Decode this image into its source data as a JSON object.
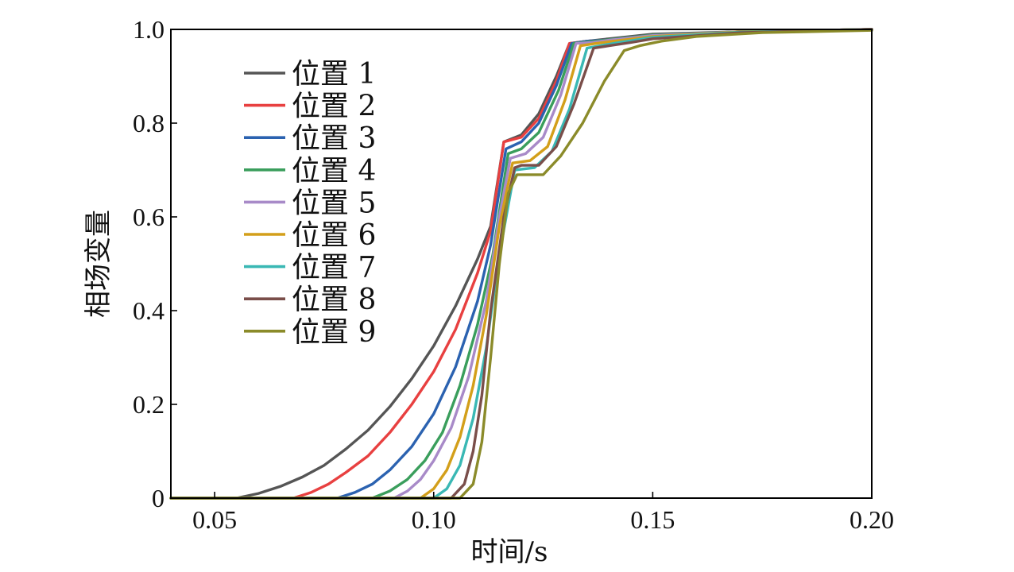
{
  "chart_data": {
    "type": "line",
    "title": "",
    "xlabel": "时间/s",
    "ylabel": "相场变量",
    "xlim": [
      0.04,
      0.2
    ],
    "ylim": [
      0,
      1.0
    ],
    "xticks": [
      0.05,
      0.1,
      0.15,
      0.2
    ],
    "xtick_labels": [
      "0.05",
      "0.10",
      "0.15",
      "0.20"
    ],
    "yticks": [
      0,
      0.2,
      0.4,
      0.6,
      0.8,
      1.0
    ],
    "ytick_labels": [
      "0",
      "0.2",
      "0.4",
      "0.6",
      "0.8",
      "1.0"
    ],
    "grid": false,
    "legend_position": "top-left",
    "series": [
      {
        "name": "位置 1",
        "color": "#555555",
        "points": [
          [
            0.04,
            0
          ],
          [
            0.055,
            0
          ],
          [
            0.06,
            0.01
          ],
          [
            0.065,
            0.025
          ],
          [
            0.07,
            0.045
          ],
          [
            0.075,
            0.07
          ],
          [
            0.08,
            0.105
          ],
          [
            0.085,
            0.145
          ],
          [
            0.09,
            0.195
          ],
          [
            0.095,
            0.255
          ],
          [
            0.1,
            0.325
          ],
          [
            0.105,
            0.41
          ],
          [
            0.11,
            0.51
          ],
          [
            0.113,
            0.58
          ],
          [
            0.116,
            0.76
          ],
          [
            0.12,
            0.775
          ],
          [
            0.124,
            0.82
          ],
          [
            0.128,
            0.9
          ],
          [
            0.131,
            0.97
          ],
          [
            0.135,
            0.975
          ],
          [
            0.14,
            0.98
          ],
          [
            0.15,
            0.99
          ],
          [
            0.17,
            0.995
          ],
          [
            0.2,
            1.0
          ]
        ]
      },
      {
        "name": "位置 2",
        "color": "#e84040",
        "points": [
          [
            0.04,
            0
          ],
          [
            0.068,
            0
          ],
          [
            0.072,
            0.012
          ],
          [
            0.076,
            0.03
          ],
          [
            0.08,
            0.055
          ],
          [
            0.085,
            0.09
          ],
          [
            0.09,
            0.14
          ],
          [
            0.095,
            0.2
          ],
          [
            0.1,
            0.27
          ],
          [
            0.105,
            0.36
          ],
          [
            0.11,
            0.48
          ],
          [
            0.113,
            0.57
          ],
          [
            0.116,
            0.76
          ],
          [
            0.12,
            0.77
          ],
          [
            0.124,
            0.81
          ],
          [
            0.128,
            0.89
          ],
          [
            0.131,
            0.97
          ],
          [
            0.135,
            0.975
          ],
          [
            0.14,
            0.978
          ],
          [
            0.15,
            0.988
          ],
          [
            0.17,
            0.995
          ],
          [
            0.2,
            1.0
          ]
        ]
      },
      {
        "name": "位置 3",
        "color": "#2b62b0",
        "points": [
          [
            0.04,
            0
          ],
          [
            0.078,
            0
          ],
          [
            0.082,
            0.012
          ],
          [
            0.086,
            0.03
          ],
          [
            0.09,
            0.06
          ],
          [
            0.095,
            0.11
          ],
          [
            0.1,
            0.18
          ],
          [
            0.105,
            0.28
          ],
          [
            0.11,
            0.42
          ],
          [
            0.113,
            0.54
          ],
          [
            0.1165,
            0.745
          ],
          [
            0.12,
            0.76
          ],
          [
            0.124,
            0.8
          ],
          [
            0.128,
            0.88
          ],
          [
            0.1315,
            0.97
          ],
          [
            0.135,
            0.975
          ],
          [
            0.14,
            0.978
          ],
          [
            0.15,
            0.988
          ],
          [
            0.17,
            0.995
          ],
          [
            0.2,
            1.0
          ]
        ]
      },
      {
        "name": "位置 4",
        "color": "#3a9e5c",
        "points": [
          [
            0.04,
            0
          ],
          [
            0.086,
            0
          ],
          [
            0.09,
            0.015
          ],
          [
            0.094,
            0.04
          ],
          [
            0.098,
            0.08
          ],
          [
            0.102,
            0.14
          ],
          [
            0.106,
            0.24
          ],
          [
            0.11,
            0.37
          ],
          [
            0.1135,
            0.52
          ],
          [
            0.117,
            0.735
          ],
          [
            0.12,
            0.745
          ],
          [
            0.124,
            0.78
          ],
          [
            0.1285,
            0.87
          ],
          [
            0.132,
            0.97
          ],
          [
            0.135,
            0.973
          ],
          [
            0.14,
            0.978
          ],
          [
            0.15,
            0.988
          ],
          [
            0.17,
            0.995
          ],
          [
            0.2,
            1.0
          ]
        ]
      },
      {
        "name": "位置 5",
        "color": "#a88ac8",
        "points": [
          [
            0.04,
            0
          ],
          [
            0.091,
            0
          ],
          [
            0.094,
            0.015
          ],
          [
            0.097,
            0.04
          ],
          [
            0.1,
            0.08
          ],
          [
            0.104,
            0.15
          ],
          [
            0.108,
            0.26
          ],
          [
            0.112,
            0.42
          ],
          [
            0.115,
            0.6
          ],
          [
            0.1175,
            0.725
          ],
          [
            0.121,
            0.735
          ],
          [
            0.125,
            0.77
          ],
          [
            0.129,
            0.86
          ],
          [
            0.1325,
            0.97
          ],
          [
            0.136,
            0.972
          ],
          [
            0.14,
            0.977
          ],
          [
            0.15,
            0.987
          ],
          [
            0.17,
            0.995
          ],
          [
            0.2,
            1.0
          ]
        ]
      },
      {
        "name": "位置 6",
        "color": "#d39f1a",
        "points": [
          [
            0.04,
            0
          ],
          [
            0.097,
            0
          ],
          [
            0.1,
            0.02
          ],
          [
            0.103,
            0.06
          ],
          [
            0.106,
            0.13
          ],
          [
            0.109,
            0.24
          ],
          [
            0.112,
            0.39
          ],
          [
            0.115,
            0.58
          ],
          [
            0.118,
            0.715
          ],
          [
            0.122,
            0.72
          ],
          [
            0.126,
            0.75
          ],
          [
            0.13,
            0.85
          ],
          [
            0.1335,
            0.965
          ],
          [
            0.137,
            0.97
          ],
          [
            0.141,
            0.975
          ],
          [
            0.15,
            0.985
          ],
          [
            0.17,
            0.995
          ],
          [
            0.2,
            1.0
          ]
        ]
      },
      {
        "name": "位置 7",
        "color": "#3ab8b4",
        "points": [
          [
            0.04,
            0
          ],
          [
            0.1,
            0
          ],
          [
            0.103,
            0.02
          ],
          [
            0.106,
            0.07
          ],
          [
            0.109,
            0.17
          ],
          [
            0.112,
            0.32
          ],
          [
            0.115,
            0.52
          ],
          [
            0.1185,
            0.7
          ],
          [
            0.123,
            0.705
          ],
          [
            0.127,
            0.74
          ],
          [
            0.131,
            0.83
          ],
          [
            0.135,
            0.96
          ],
          [
            0.139,
            0.967
          ],
          [
            0.143,
            0.973
          ],
          [
            0.15,
            0.983
          ],
          [
            0.17,
            0.994
          ],
          [
            0.2,
            1.0
          ]
        ]
      },
      {
        "name": "位置 8",
        "color": "#7a4e4a",
        "points": [
          [
            0.04,
            0
          ],
          [
            0.104,
            0
          ],
          [
            0.107,
            0.03
          ],
          [
            0.109,
            0.1
          ],
          [
            0.111,
            0.22
          ],
          [
            0.113,
            0.4
          ],
          [
            0.116,
            0.6
          ],
          [
            0.1185,
            0.705
          ],
          [
            0.12,
            0.71
          ],
          [
            0.124,
            0.71
          ],
          [
            0.128,
            0.75
          ],
          [
            0.132,
            0.84
          ],
          [
            0.1365,
            0.96
          ],
          [
            0.14,
            0.965
          ],
          [
            0.145,
            0.972
          ],
          [
            0.15,
            0.98
          ],
          [
            0.17,
            0.993
          ],
          [
            0.2,
            1.0
          ]
        ]
      },
      {
        "name": "位置 9",
        "color": "#8b8b2a",
        "points": [
          [
            0.04,
            0
          ],
          [
            0.106,
            0
          ],
          [
            0.109,
            0.03
          ],
          [
            0.111,
            0.12
          ],
          [
            0.113,
            0.3
          ],
          [
            0.115,
            0.5
          ],
          [
            0.117,
            0.65
          ],
          [
            0.119,
            0.69
          ],
          [
            0.121,
            0.69
          ],
          [
            0.125,
            0.69
          ],
          [
            0.129,
            0.73
          ],
          [
            0.134,
            0.8
          ],
          [
            0.139,
            0.89
          ],
          [
            0.1435,
            0.955
          ],
          [
            0.147,
            0.965
          ],
          [
            0.152,
            0.975
          ],
          [
            0.16,
            0.985
          ],
          [
            0.175,
            0.993
          ],
          [
            0.2,
            0.998
          ]
        ]
      }
    ]
  }
}
